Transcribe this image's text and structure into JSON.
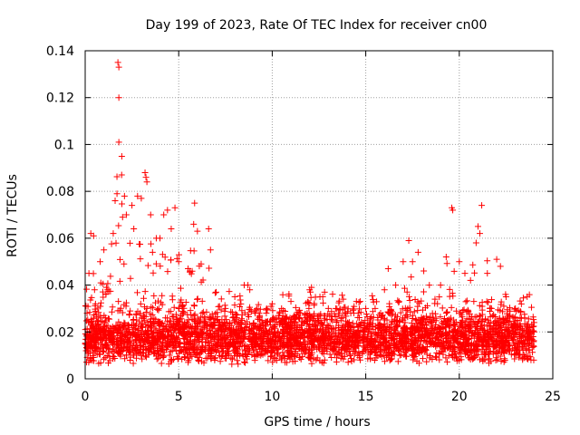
{
  "chart_data": {
    "type": "scatter",
    "title": "Day 199 of 2023, Rate Of TEC Index for receiver cn00",
    "xlabel": "GPS time / hours",
    "ylabel": "ROTI / TECUs",
    "xlim": [
      0,
      25
    ],
    "ylim": [
      0,
      0.14
    ],
    "x_ticks": [
      0,
      5,
      10,
      15,
      20,
      25
    ],
    "x_tick_labels": [
      "0",
      "5",
      "10",
      "15",
      "20",
      "25"
    ],
    "y_ticks": [
      0,
      0.02,
      0.04,
      0.06,
      0.08,
      0.1,
      0.12,
      0.14
    ],
    "y_tick_labels": [
      "0",
      "0.02",
      "0.04",
      "0.06",
      "0.08",
      "0.1",
      "0.12",
      "0.14"
    ],
    "grid": true,
    "marker": "+",
    "color": "#ff0000",
    "series": [
      {
        "name": "ROTI",
        "points": [
          [
            0.05,
            0.012
          ],
          [
            0.1,
            0.028
          ],
          [
            0.2,
            0.045
          ],
          [
            0.3,
            0.062
          ],
          [
            0.45,
            0.061
          ],
          [
            0.5,
            0.038
          ],
          [
            0.8,
            0.05
          ],
          [
            1.0,
            0.055
          ],
          [
            1.2,
            0.038
          ],
          [
            1.5,
            0.062
          ],
          [
            1.6,
            0.076
          ],
          [
            1.7,
            0.079
          ],
          [
            1.75,
            0.135
          ],
          [
            1.8,
            0.133
          ],
          [
            1.8,
            0.12
          ],
          [
            1.8,
            0.101
          ],
          [
            1.95,
            0.087
          ],
          [
            2.0,
            0.069
          ],
          [
            2.1,
            0.078
          ],
          [
            2.2,
            0.07
          ],
          [
            2.5,
            0.074
          ],
          [
            2.6,
            0.064
          ],
          [
            2.8,
            0.078
          ],
          [
            3.0,
            0.077
          ],
          [
            3.2,
            0.088
          ],
          [
            3.25,
            0.086
          ],
          [
            3.3,
            0.084
          ],
          [
            3.5,
            0.07
          ],
          [
            3.6,
            0.054
          ],
          [
            3.8,
            0.06
          ],
          [
            4.0,
            0.06
          ],
          [
            4.2,
            0.07
          ],
          [
            4.4,
            0.072
          ],
          [
            4.6,
            0.064
          ],
          [
            4.8,
            0.073
          ],
          [
            5.0,
            0.05
          ],
          [
            5.5,
            0.047
          ],
          [
            5.6,
            0.046
          ],
          [
            5.8,
            0.066
          ],
          [
            5.85,
            0.075
          ],
          [
            6.0,
            0.063
          ],
          [
            6.2,
            0.049
          ],
          [
            6.6,
            0.064
          ],
          [
            6.7,
            0.055
          ],
          [
            7.0,
            0.037
          ],
          [
            7.5,
            0.03
          ],
          [
            8.0,
            0.035
          ],
          [
            8.5,
            0.04
          ],
          [
            8.7,
            0.04
          ],
          [
            8.8,
            0.038
          ],
          [
            9.3,
            0.028
          ],
          [
            9.7,
            0.03
          ],
          [
            10.0,
            0.032
          ],
          [
            10.5,
            0.03
          ],
          [
            11.0,
            0.033
          ],
          [
            11.5,
            0.028
          ],
          [
            12.0,
            0.038
          ],
          [
            12.1,
            0.039
          ],
          [
            12.5,
            0.027
          ],
          [
            12.7,
            0.035
          ],
          [
            12.8,
            0.037
          ],
          [
            13.0,
            0.03
          ],
          [
            13.4,
            0.03
          ],
          [
            13.8,
            0.034
          ],
          [
            14.2,
            0.028
          ],
          [
            14.5,
            0.033
          ],
          [
            14.7,
            0.033
          ],
          [
            15.0,
            0.03
          ],
          [
            15.5,
            0.03
          ],
          [
            16.0,
            0.038
          ],
          [
            16.2,
            0.047
          ],
          [
            16.6,
            0.04
          ],
          [
            17.0,
            0.05
          ],
          [
            17.3,
            0.059
          ],
          [
            17.5,
            0.05
          ],
          [
            17.8,
            0.054
          ],
          [
            18.1,
            0.046
          ],
          [
            18.4,
            0.04
          ],
          [
            18.7,
            0.034
          ],
          [
            19.0,
            0.04
          ],
          [
            19.3,
            0.052
          ],
          [
            19.6,
            0.073
          ],
          [
            19.65,
            0.072
          ],
          [
            20.0,
            0.05
          ],
          [
            20.3,
            0.045
          ],
          [
            20.6,
            0.042
          ],
          [
            20.9,
            0.058
          ],
          [
            21.0,
            0.065
          ],
          [
            21.1,
            0.062
          ],
          [
            21.2,
            0.074
          ],
          [
            21.5,
            0.045
          ],
          [
            22.0,
            0.051
          ],
          [
            22.2,
            0.048
          ],
          [
            22.5,
            0.035
          ],
          [
            23.0,
            0.03
          ],
          [
            23.5,
            0.026
          ],
          [
            24.0,
            0.02
          ]
        ]
      }
    ],
    "density_note": "Dense band of points with ROTI ~0.005-0.03 across all hours 0-24"
  }
}
